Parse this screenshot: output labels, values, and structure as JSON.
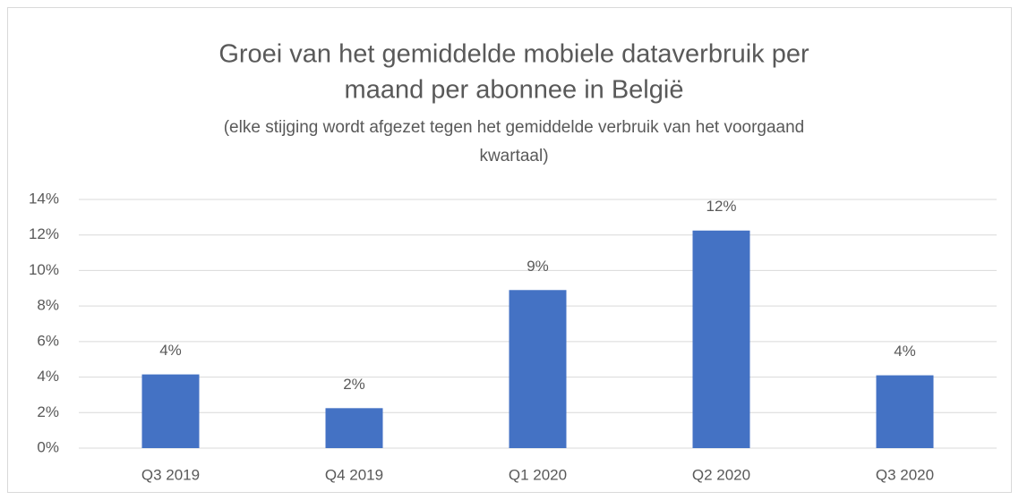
{
  "chart_data": {
    "type": "bar",
    "title": [
      "Groei van het gemiddelde mobiele dataverbruik per",
      "maand per abonnee in België"
    ],
    "subtitle": [
      "(elke stijging wordt afgezet tegen het gemiddelde verbruik van het voorgaand",
      "kwartaal)"
    ],
    "categories": [
      "Q3 2019",
      "Q4 2019",
      "Q1 2020",
      "Q2 2020",
      "Q3 2020"
    ],
    "values": [
      4.15,
      2.25,
      8.9,
      12.25,
      4.1
    ],
    "value_labels": [
      "4%",
      "2%",
      "9%",
      "12%",
      "4%"
    ],
    "color": "#4472c4",
    "ylim": [
      0,
      14
    ],
    "yticks": [
      {
        "value": 0,
        "label": "0%"
      },
      {
        "value": 2,
        "label": "2%"
      },
      {
        "value": 4,
        "label": "4%"
      },
      {
        "value": 6,
        "label": "6%"
      },
      {
        "value": 8,
        "label": "8%"
      },
      {
        "value": 10,
        "label": "10%"
      },
      {
        "value": 12,
        "label": "12%"
      },
      {
        "value": 14,
        "label": "14%"
      }
    ],
    "grid": true
  }
}
